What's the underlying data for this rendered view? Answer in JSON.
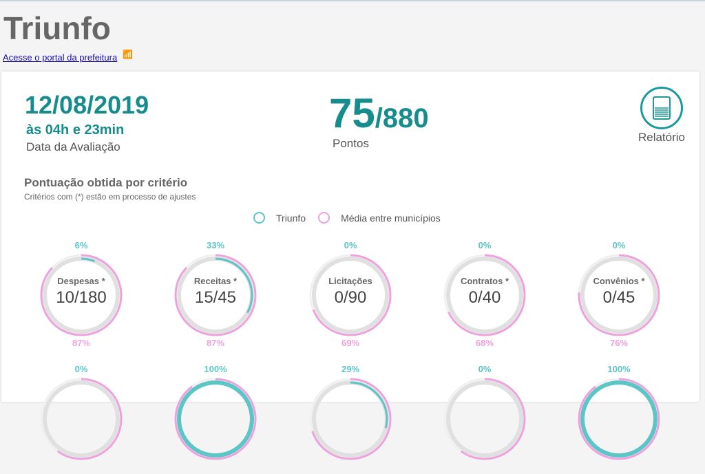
{
  "header": {
    "title": "Triunfo",
    "portal_link": "Acesse o portal da prefeitura"
  },
  "evaluation": {
    "date": "12/08/2019",
    "time": "às 04h e 23min",
    "date_label": "Data da Avaliação"
  },
  "score": {
    "points": "75",
    "total": "/880",
    "label": "Pontos"
  },
  "report": {
    "label": "Relatório",
    "icon": "document-icon"
  },
  "section": {
    "title": "Pontuação obtida por critério",
    "subtitle": "Critérios com (*) estão em processo de ajustes"
  },
  "legend": {
    "city": "Triunfo",
    "average": "Média entre municípios"
  },
  "colors": {
    "city": "#5cc5c5",
    "average": "#eda2dd",
    "track": "#e0e0e0",
    "accent": "#178c8c"
  },
  "criteria": [
    {
      "name": "Despesas *",
      "value": "10/180",
      "city_pct": "6%",
      "avg_pct": "87%",
      "city": 6,
      "avg": 87
    },
    {
      "name": "Receitas *",
      "value": "15/45",
      "city_pct": "33%",
      "avg_pct": "87%",
      "city": 33,
      "avg": 87
    },
    {
      "name": "Licitações",
      "value": "0/90",
      "city_pct": "0%",
      "avg_pct": "69%",
      "city": 0,
      "avg": 69
    },
    {
      "name": "Contratos *",
      "value": "0/40",
      "city_pct": "0%",
      "avg_pct": "68%",
      "city": 0,
      "avg": 68
    },
    {
      "name": "Convênios *",
      "value": "0/45",
      "city_pct": "0%",
      "avg_pct": "76%",
      "city": 0,
      "avg": 76
    },
    {
      "name": "",
      "value": "",
      "city_pct": "0%",
      "avg_pct": "",
      "city": 0,
      "avg": 60
    },
    {
      "name": "",
      "value": "",
      "city_pct": "100%",
      "avg_pct": "",
      "city": 100,
      "avg": 90
    },
    {
      "name": "",
      "value": "",
      "city_pct": "29%",
      "avg_pct": "",
      "city": 29,
      "avg": 70
    },
    {
      "name": "",
      "value": "",
      "city_pct": "0%",
      "avg_pct": "",
      "city": 0,
      "avg": 60
    },
    {
      "name": "",
      "value": "",
      "city_pct": "100%",
      "avg_pct": "",
      "city": 100,
      "avg": 90
    }
  ]
}
